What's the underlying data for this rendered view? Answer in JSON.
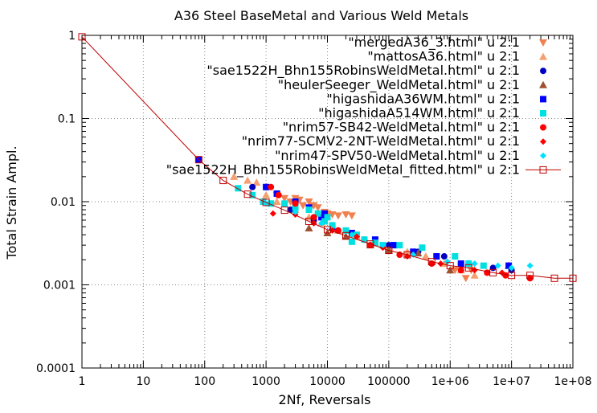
{
  "chart_data": {
    "type": "scatter",
    "title": "A36 Steel BaseMetal and Various Weld Metals",
    "xlabel": "2Nf, Reversals",
    "ylabel": "Total Strain Ampl.",
    "xscale": "log",
    "yscale": "log",
    "xlim": [
      1,
      100000000
    ],
    "ylim": [
      0.0001,
      1
    ],
    "grid": true,
    "legend_position": "top-right",
    "x_tick_labels": [
      "1",
      "10",
      "100",
      "1000",
      "10000",
      "100000",
      "1e+06",
      "1e+07",
      "1e+08"
    ],
    "y_tick_labels": [
      "0.0001",
      "0.001",
      "0.01",
      "0.1",
      "1"
    ],
    "series": [
      {
        "name": "\"mergedA36_3.html\" u 2:1",
        "marker": "triangle-down",
        "color": "#f08050",
        "points": [
          [
            1500,
            0.012
          ],
          [
            2000,
            0.011
          ],
          [
            2500,
            0.01
          ],
          [
            3000,
            0.011
          ],
          [
            4000,
            0.009
          ],
          [
            5000,
            0.01
          ],
          [
            6000,
            0.009
          ],
          [
            7000,
            0.0085
          ],
          [
            9000,
            0.0075
          ],
          [
            12000,
            0.007
          ],
          [
            15000,
            0.0068
          ],
          [
            20000,
            0.007
          ],
          [
            25000,
            0.0068
          ],
          [
            3500,
            0.0105
          ],
          [
            5500,
            0.0088
          ],
          [
            10000,
            0.0072
          ],
          [
            1800000,
            0.0012
          ],
          [
            2200000,
            0.0015
          ],
          [
            1200000,
            0.0015
          ]
        ]
      },
      {
        "name": "\"mattosA36.html\" u 2:1",
        "marker": "triangle-up",
        "color": "#f4a070",
        "points": [
          [
            300,
            0.02
          ],
          [
            500,
            0.018
          ],
          [
            700,
            0.017
          ],
          [
            1000,
            0.012
          ],
          [
            1500,
            0.01
          ],
          [
            3000,
            0.008
          ],
          [
            5000,
            0.0065
          ],
          [
            8000,
            0.0055
          ],
          [
            15000,
            0.0045
          ],
          [
            30000,
            0.0038
          ],
          [
            60000,
            0.0032
          ],
          [
            100000,
            0.0028
          ],
          [
            200000,
            0.0025
          ],
          [
            400000,
            0.0022
          ],
          [
            800000,
            0.0018
          ],
          [
            1500000,
            0.0015
          ],
          [
            2500000,
            0.0013
          ]
        ]
      },
      {
        "name": "\"sae1522H_Bhn155RobinsWeldMetal.html\" u 2:1",
        "marker": "circle",
        "color": "#0000c0",
        "points": [
          [
            600,
            0.015
          ],
          [
            1000,
            0.015
          ],
          [
            2500,
            0.008
          ],
          [
            6000,
            0.006
          ],
          [
            15000,
            0.0045
          ],
          [
            40000,
            0.0035
          ],
          [
            100000,
            0.003
          ],
          [
            300000,
            0.0025
          ],
          [
            800000,
            0.0022
          ],
          [
            2000000,
            0.0018
          ],
          [
            5000000,
            0.0016
          ],
          [
            10000000,
            0.0015
          ]
        ]
      },
      {
        "name": "\"heulerSeeger_WeldMetal.html\" u 2:1",
        "marker": "triangle-up",
        "color": "#a05030",
        "points": [
          [
            5000,
            0.0048
          ],
          [
            10000,
            0.0042
          ],
          [
            20000,
            0.0038
          ],
          [
            50000,
            0.003
          ],
          [
            100000,
            0.0026
          ],
          [
            300000,
            0.0024
          ],
          [
            1000000,
            0.0015
          ],
          [
            9000000,
            0.0017
          ]
        ]
      },
      {
        "name": "\"higashidaA36WM.html\" u 2:1",
        "marker": "square",
        "color": "#0000ff",
        "points": [
          [
            80,
            0.032
          ],
          [
            1000,
            0.015
          ],
          [
            1500,
            0.0125
          ],
          [
            3000,
            0.01
          ],
          [
            5000,
            0.0085
          ],
          [
            9000,
            0.0072
          ],
          [
            8000,
            0.0065
          ],
          [
            12000,
            0.005
          ],
          [
            25000,
            0.0042
          ],
          [
            60000,
            0.0035
          ],
          [
            120000,
            0.003
          ],
          [
            250000,
            0.0025
          ],
          [
            600000,
            0.0022
          ],
          [
            1500000,
            0.0018
          ],
          [
            9000000,
            0.0017
          ]
        ]
      },
      {
        "name": "\"higashidaA514WM.html\" u 2:1",
        "marker": "square",
        "color": "#00e0e0",
        "points": [
          [
            350,
            0.0145
          ],
          [
            600,
            0.012
          ],
          [
            900,
            0.01
          ],
          [
            1200,
            0.0095
          ],
          [
            2000,
            0.0095
          ],
          [
            3000,
            0.0085
          ],
          [
            5000,
            0.008
          ],
          [
            7000,
            0.0072
          ],
          [
            10000,
            0.0065
          ],
          [
            9000,
            0.0058
          ],
          [
            12000,
            0.0052
          ],
          [
            20000,
            0.0045
          ],
          [
            30000,
            0.004
          ],
          [
            40000,
            0.0035
          ],
          [
            60000,
            0.0032
          ],
          [
            150000,
            0.003
          ],
          [
            350000,
            0.0028
          ],
          [
            1200000,
            0.0022
          ],
          [
            2000000,
            0.0018
          ],
          [
            3500000,
            0.0017
          ],
          [
            25000,
            0.0033
          ],
          [
            80000,
            0.003
          ]
        ]
      },
      {
        "name": "\"nrim57-SB42-WeldMetal.html\" u 2:1",
        "marker": "circle",
        "color": "#ff0000",
        "points": [
          [
            1200,
            0.015
          ],
          [
            1600,
            0.012
          ],
          [
            3000,
            0.0095
          ],
          [
            6000,
            0.0065
          ],
          [
            15000,
            0.0045
          ],
          [
            50000,
            0.003
          ],
          [
            150000,
            0.0023
          ],
          [
            500000,
            0.0018
          ],
          [
            1500000,
            0.0015
          ],
          [
            4000000,
            0.0014
          ],
          [
            8000000,
            0.0013
          ],
          [
            20000000,
            0.0012
          ]
        ]
      },
      {
        "name": "\"nrim77-SCMV2-2NT-WeldMetal.html\" u 2:1",
        "marker": "diamond",
        "color": "#ff0000",
        "points": [
          [
            1300,
            0.0072
          ],
          [
            3000,
            0.007
          ],
          [
            6000,
            0.0055
          ],
          [
            12000,
            0.0045
          ],
          [
            30000,
            0.0038
          ],
          [
            80000,
            0.0028
          ],
          [
            200000,
            0.0022
          ],
          [
            700000,
            0.0018
          ],
          [
            2500000,
            0.0015
          ],
          [
            7000000,
            0.0014
          ]
        ]
      },
      {
        "name": "\"nrim47-SPV50-WeldMetal.html\" u 2:1",
        "marker": "diamond",
        "color": "#00e0ff",
        "points": [
          [
            1000,
            0.0095
          ],
          [
            3000,
            0.0075
          ],
          [
            8000,
            0.0055
          ],
          [
            25000,
            0.004
          ],
          [
            80000,
            0.003
          ],
          [
            250000,
            0.0023
          ],
          [
            900000,
            0.0019
          ],
          [
            2500000,
            0.0018
          ],
          [
            6000000,
            0.0017
          ],
          [
            10000000,
            0.0016
          ],
          [
            20000000,
            0.0017
          ]
        ]
      },
      {
        "name": "\"sae1522H_Bhn155RobinsWeldMetal_fitted.html\" u 2:1",
        "marker": "open-square-line",
        "color": "#c00000",
        "points": [
          [
            1,
            0.96
          ],
          [
            80,
            0.032
          ],
          [
            200,
            0.018
          ],
          [
            500,
            0.0123
          ],
          [
            1000,
            0.0098
          ],
          [
            2000,
            0.0079
          ],
          [
            5000,
            0.0058
          ],
          [
            10000,
            0.0046
          ],
          [
            20000,
            0.0039
          ],
          [
            50000,
            0.0031
          ],
          [
            100000,
            0.0026
          ],
          [
            200000,
            0.0023
          ],
          [
            500000,
            0.0019
          ],
          [
            1000000,
            0.0017
          ],
          [
            2000000,
            0.0016
          ],
          [
            5000000,
            0.0014
          ],
          [
            10000000,
            0.0013
          ],
          [
            20000000,
            0.0013
          ],
          [
            50000000,
            0.0012
          ],
          [
            100000000,
            0.0012
          ]
        ]
      }
    ]
  }
}
